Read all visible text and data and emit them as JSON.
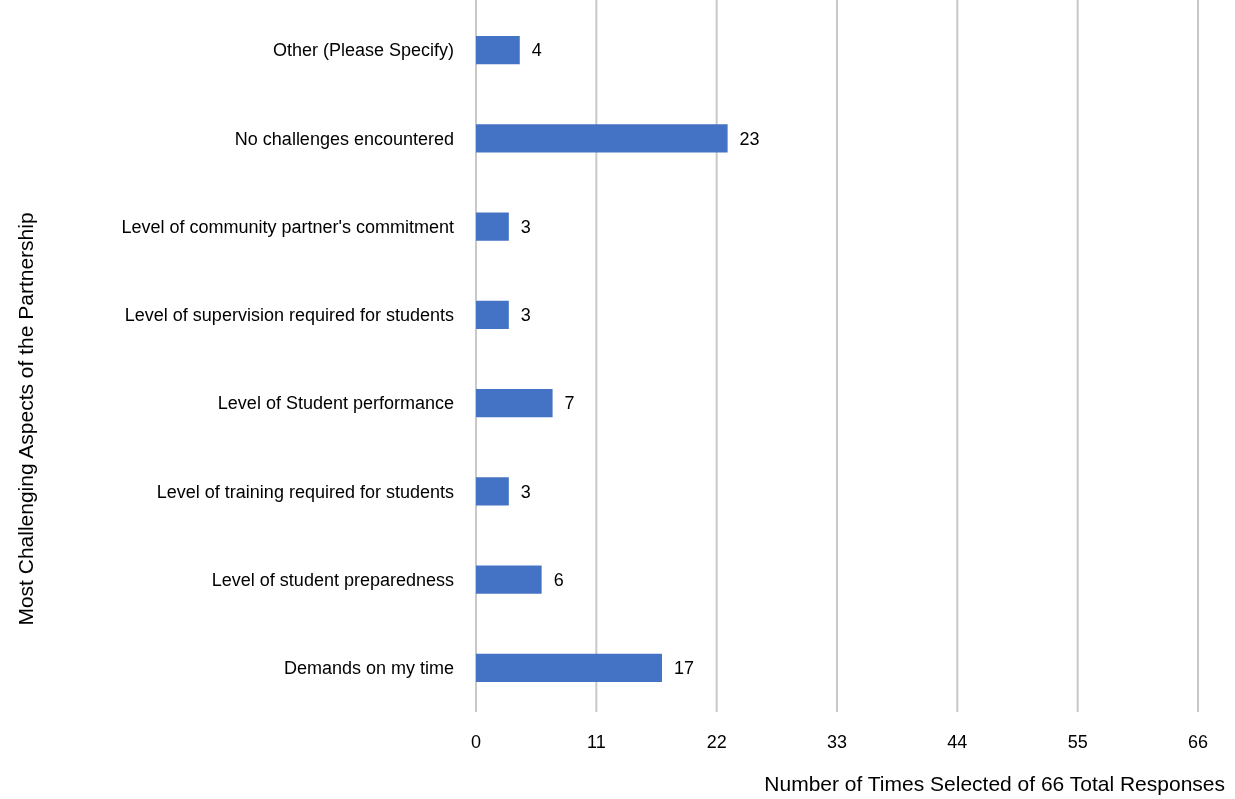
{
  "chart_data": {
    "type": "bar",
    "orientation": "horizontal",
    "xlabel": "Number of Times Selected of 66 Total Responses",
    "ylabel": "Most Challenging Aspects of the Partnership",
    "categories": [
      "Other (Please Specify)",
      "No challenges encountered",
      "Level of community partner's commitment",
      "Level of supervision required for students",
      "Level of Student performance",
      "Level of training required for students",
      "Level of student preparedness",
      "Demands on my time"
    ],
    "values": [
      4,
      23,
      3,
      3,
      7,
      3,
      6,
      17
    ],
    "color": "#4472c4",
    "xlim": [
      0,
      66
    ],
    "xticks": [
      0,
      11,
      22,
      33,
      44,
      55,
      66
    ],
    "grid": "x",
    "data_labels": true
  }
}
